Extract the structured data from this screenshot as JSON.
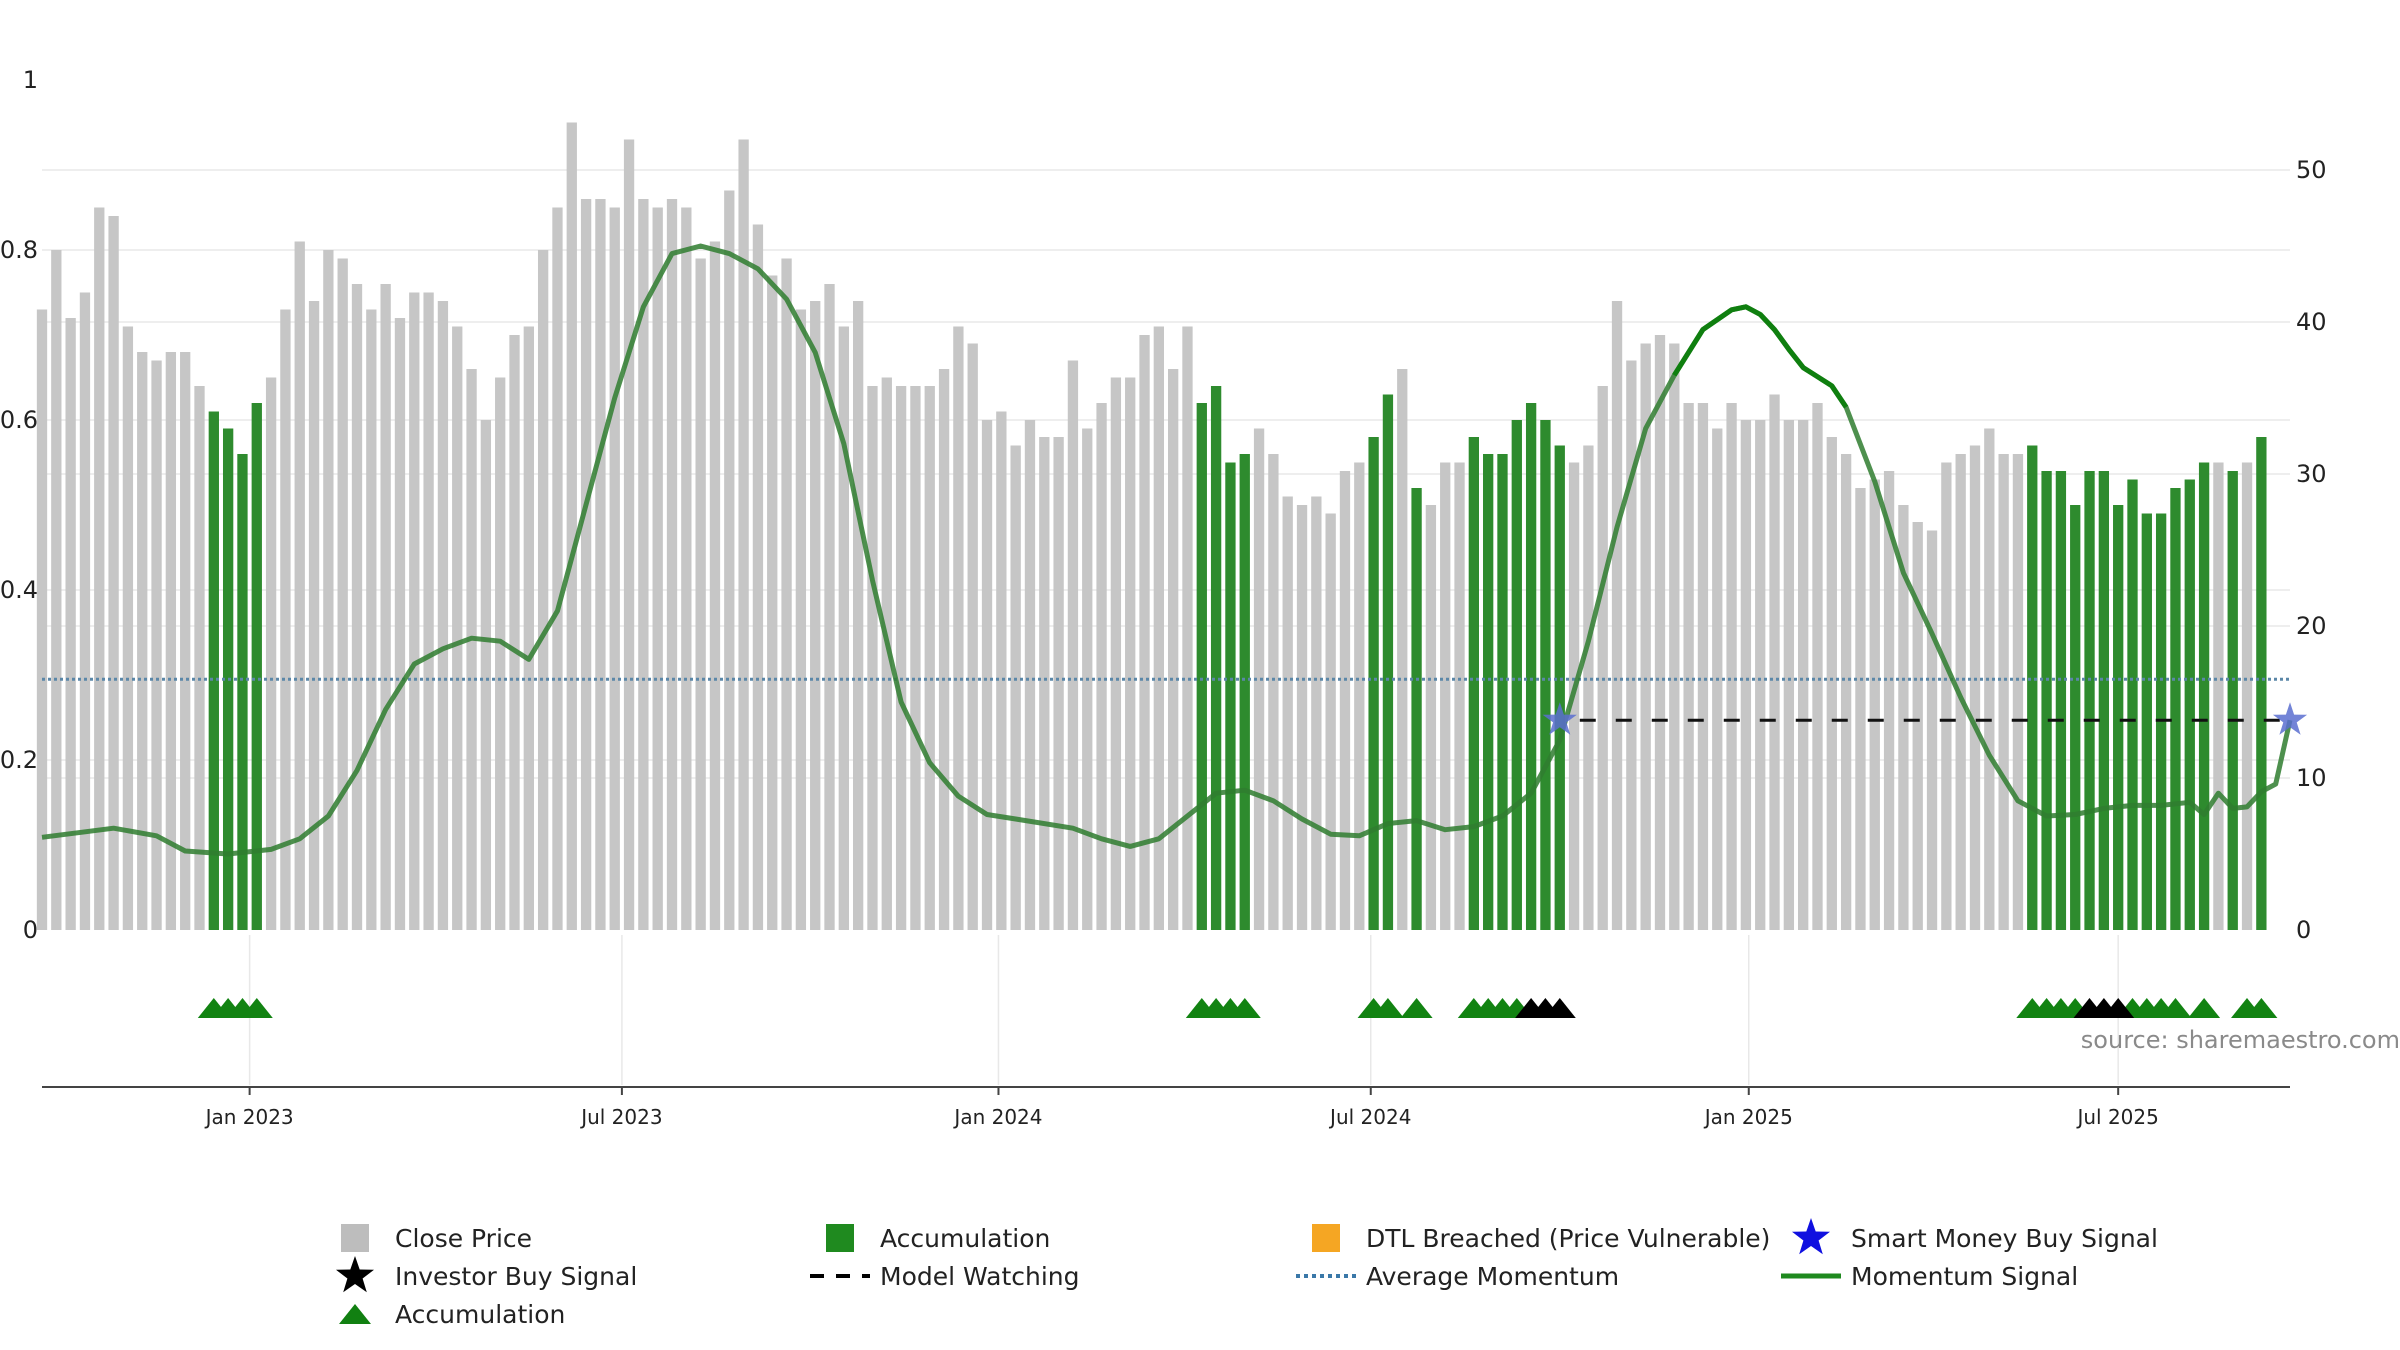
{
  "chart_data": {
    "type": "bar",
    "title": "",
    "source": "source: sharemaestro.com",
    "left_axis": {
      "ylim": [
        0,
        1
      ],
      "ticks": [
        "0",
        "0.2",
        "0.4",
        "0.6",
        "0.8",
        "1"
      ]
    },
    "right_axis": {
      "ylim": [
        0,
        50
      ],
      "ticks": [
        "0",
        "10",
        "20",
        "30",
        "40",
        "50"
      ]
    },
    "x_ticks": [
      {
        "label": "Jan 2023",
        "week": 14.5
      },
      {
        "label": "Jul 2023",
        "week": 40.5
      },
      {
        "label": "Jan 2024",
        "week": 66.8
      },
      {
        "label": "Jul 2024",
        "week": 92.8
      },
      {
        "label": "Jan 2025",
        "week": 119.2
      },
      {
        "label": "Jul 2025",
        "week": 145
      }
    ],
    "x_range": [
      0,
      157
    ],
    "close_price": [
      0.73,
      0.8,
      0.72,
      0.75,
      0.85,
      0.84,
      0.71,
      0.68,
      0.67,
      0.68,
      0.68,
      0.64,
      0.61,
      0.59,
      0.56,
      0.62,
      0.65,
      0.73,
      0.81,
      0.74,
      0.8,
      0.79,
      0.76,
      0.73,
      0.76,
      0.72,
      0.75,
      0.75,
      0.74,
      0.71,
      0.66,
      0.6,
      0.65,
      0.7,
      0.71,
      0.8,
      0.85,
      0.95,
      0.86,
      0.86,
      0.85,
      0.93,
      0.86,
      0.85,
      0.86,
      0.85,
      0.79,
      0.81,
      0.87,
      0.93,
      0.83,
      0.77,
      0.79,
      0.73,
      0.74,
      0.76,
      0.71,
      0.74,
      0.64,
      0.65,
      0.64,
      0.64,
      0.64,
      0.66,
      0.71,
      0.69,
      0.6,
      0.61,
      0.57,
      0.6,
      0.58,
      0.58,
      0.67,
      0.59,
      0.62,
      0.65,
      0.65,
      0.7,
      0.71,
      0.66,
      0.71,
      0.62,
      0.64,
      0.55,
      0.56,
      0.59,
      0.56,
      0.51,
      0.5,
      0.51,
      0.49,
      0.54,
      0.55,
      0.58,
      0.63,
      0.66,
      0.52,
      0.5,
      0.55,
      0.55,
      0.58,
      0.56,
      0.56,
      0.6,
      0.62,
      0.6,
      0.57,
      0.55,
      0.57,
      0.64,
      0.74,
      0.67,
      0.69,
      0.7,
      0.69,
      0.62,
      0.62,
      0.59,
      0.62,
      0.6,
      0.6,
      0.63,
      0.6,
      0.6,
      0.62,
      0.58,
      0.56,
      0.52,
      0.53,
      0.54,
      0.5,
      0.48,
      0.47,
      0.55,
      0.56,
      0.57,
      0.59,
      0.56,
      0.56,
      0.57,
      0.54,
      0.54,
      0.5,
      0.54,
      0.54,
      0.5,
      0.53,
      0.49,
      0.49,
      0.52,
      0.53,
      0.55,
      0.55,
      0.54,
      0.55,
      0.58
    ],
    "accumulation_weeks": [
      12,
      13,
      14,
      15,
      81,
      82,
      83,
      84,
      93,
      94,
      96,
      100,
      101,
      102,
      103,
      104,
      105,
      106,
      139,
      140,
      141,
      142,
      143,
      144,
      145,
      146,
      147,
      148,
      149,
      150,
      151,
      153,
      155
    ],
    "momentum_signal": [
      [
        0,
        6.1
      ],
      [
        5,
        6.7
      ],
      [
        8,
        6.2
      ],
      [
        10,
        5.2
      ],
      [
        13,
        5.0
      ],
      [
        16,
        5.3
      ],
      [
        18,
        6.0
      ],
      [
        20,
        7.5
      ],
      [
        22,
        10.5
      ],
      [
        24,
        14.5
      ],
      [
        26,
        17.5
      ],
      [
        28,
        18.5
      ],
      [
        30,
        19.2
      ],
      [
        32,
        19.0
      ],
      [
        34,
        17.8
      ],
      [
        36,
        21
      ],
      [
        38,
        28
      ],
      [
        40,
        35
      ],
      [
        42,
        41
      ],
      [
        44,
        44.5
      ],
      [
        46,
        45
      ],
      [
        48,
        44.5
      ],
      [
        50,
        43.5
      ],
      [
        52,
        41.5
      ],
      [
        54,
        38
      ],
      [
        56,
        32
      ],
      [
        58,
        23
      ],
      [
        60,
        15
      ],
      [
        62,
        11
      ],
      [
        64,
        8.8
      ],
      [
        66,
        7.6
      ],
      [
        68,
        7.3
      ],
      [
        72,
        6.7
      ],
      [
        74,
        6.0
      ],
      [
        76,
        5.5
      ],
      [
        78,
        6.0
      ],
      [
        80,
        7.5
      ],
      [
        82,
        9.0
      ],
      [
        84,
        9.2
      ],
      [
        86,
        8.5
      ],
      [
        88,
        7.3
      ],
      [
        90,
        6.3
      ],
      [
        92,
        6.2
      ],
      [
        94,
        7.0
      ],
      [
        96,
        7.2
      ],
      [
        98,
        6.6
      ],
      [
        100,
        6.8
      ],
      [
        102,
        7.5
      ],
      [
        104,
        9.0
      ],
      [
        106,
        12.5
      ],
      [
        108,
        19.0
      ],
      [
        110,
        26.5
      ],
      [
        112,
        33.0
      ],
      [
        114,
        36.5
      ],
      [
        116,
        39.5
      ],
      [
        118,
        40.8
      ],
      [
        119,
        41.0
      ],
      [
        120,
        40.5
      ],
      [
        121,
        39.5
      ],
      [
        122,
        38.2
      ],
      [
        123,
        37
      ],
      [
        124,
        36.4
      ],
      [
        125,
        35.8
      ],
      [
        126,
        34.4
      ],
      [
        128,
        29.5
      ],
      [
        130,
        23.5
      ],
      [
        132,
        19.5
      ],
      [
        134,
        15.3
      ],
      [
        136,
        11.5
      ],
      [
        138,
        8.5
      ],
      [
        140,
        7.5
      ],
      [
        142,
        7.6
      ],
      [
        144,
        8.0
      ],
      [
        146,
        8.2
      ],
      [
        148,
        8.2
      ],
      [
        150,
        8.4
      ],
      [
        151,
        7.6
      ],
      [
        152,
        9.0
      ],
      [
        153,
        8.0
      ],
      [
        154,
        8.1
      ],
      [
        155,
        9.1
      ],
      [
        156,
        9.6
      ],
      [
        157,
        13.8
      ]
    ],
    "average_momentum": 16.5,
    "model_watching": {
      "from_week": 106,
      "to_week": 157,
      "level": 13.8
    },
    "smart_money_buy_signal_weeks": [
      106,
      157
    ],
    "accumulation_marker_weeks": [
      12,
      13,
      14,
      15,
      81,
      82,
      83,
      84,
      93,
      94,
      96,
      100,
      101,
      102,
      103,
      139,
      140,
      141,
      142,
      146,
      147,
      148,
      149,
      151,
      154,
      155
    ],
    "investor_buy_signal_weeks": [
      104,
      105,
      106,
      143,
      144,
      145
    ],
    "legend": [
      {
        "label": "Close Price",
        "color": "#bdbdbd",
        "symbol": "square"
      },
      {
        "label": "Accumulation",
        "color": "#1f8a1f",
        "symbol": "square"
      },
      {
        "label": "DTL Breached (Price Vulnerable)",
        "color": "#f5a623",
        "symbol": "square"
      },
      {
        "label": "Smart Money Buy Signal",
        "color": "#1010e0",
        "symbol": "star"
      },
      {
        "label": "Investor Buy Signal",
        "color": "#000000",
        "symbol": "star"
      },
      {
        "label": "Model Watching",
        "color": "#000000",
        "symbol": "dashed-line"
      },
      {
        "label": "Average Momentum",
        "color": "#3a78a8",
        "symbol": "dotted-line"
      },
      {
        "label": "Momentum Signal",
        "color": "#1f8a1f",
        "symbol": "line"
      },
      {
        "label": "Accumulation",
        "color": "#118011",
        "symbol": "triangle"
      }
    ]
  },
  "colors": {
    "close_price": "#c6c6c6",
    "accumulation_bar": "#2e8b2e",
    "momentum": "#2f7d2f",
    "momentum_highlight": "#0f7f0f",
    "average_momentum": "#5b87a8",
    "model_watching": "#111111",
    "smart_money": "#5a6fd0",
    "marker_accumulation": "#128312",
    "marker_investor": "#000000",
    "axis": "#444444",
    "grid": "#e8e8e8"
  }
}
